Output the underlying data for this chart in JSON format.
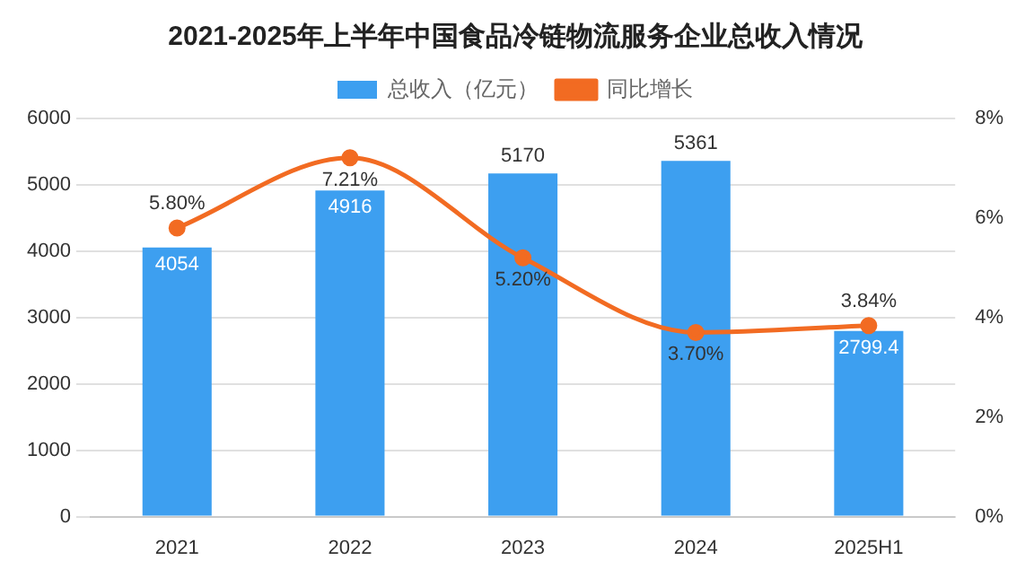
{
  "chart_data": {
    "type": "bar",
    "title": "2021-2025年上半年中国食品冷链物流服务企业总收入情况",
    "categories": [
      "2021",
      "2022",
      "2023",
      "2024",
      "2025H1"
    ],
    "series": [
      {
        "name": "总收入（亿元）",
        "color": "#3d9ff0",
        "values": [
          4054,
          4916,
          5170,
          5361,
          2799.4
        ],
        "value_labels": [
          "4054",
          "4916",
          "5170",
          "5361",
          "2799.4"
        ]
      },
      {
        "name": "同比增长",
        "type": "line",
        "axis": "y2",
        "color": "#f26b22",
        "values": [
          5.8,
          7.21,
          5.2,
          3.7,
          3.84
        ],
        "value_labels": [
          "5.80%",
          "7.21%",
          "5.20%",
          "3.70%",
          "3.84%"
        ]
      }
    ],
    "ylim": [
      0,
      6000
    ],
    "yticks": [
      0,
      1000,
      2000,
      3000,
      4000,
      5000,
      6000
    ],
    "y2lim": [
      0,
      8
    ],
    "y2ticks": [
      {
        "value": 0,
        "label": "0%"
      },
      {
        "value": 2,
        "label": "2%"
      },
      {
        "value": 4,
        "label": "4%"
      },
      {
        "value": 6,
        "label": "6%"
      },
      {
        "value": 8,
        "label": "8%"
      }
    ],
    "grid": "y",
    "legend": "top",
    "marker": "circle",
    "line_style": "solid"
  }
}
